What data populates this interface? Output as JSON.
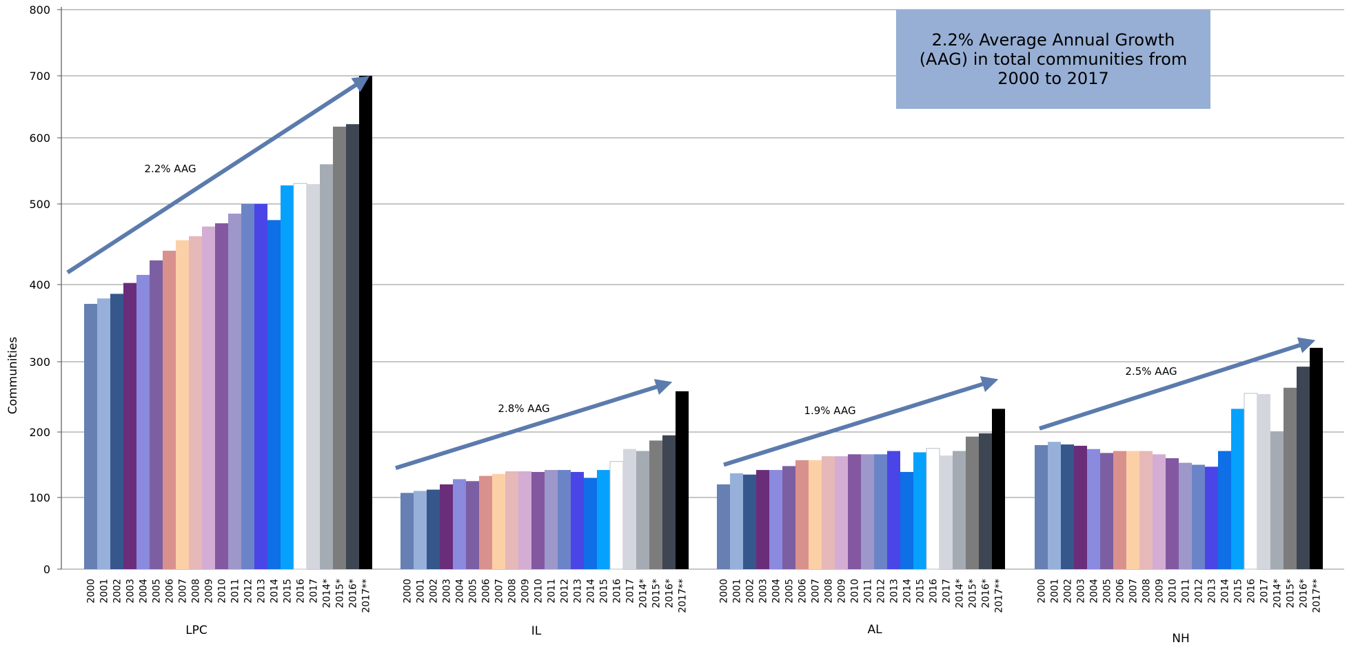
{
  "chart_data": {
    "type": "bar",
    "title": "",
    "ylabel": "Communities",
    "xlabel": "",
    "ylim": [
      0,
      800
    ],
    "yticks": [
      0,
      100,
      200,
      300,
      400,
      500,
      600,
      700,
      800
    ],
    "grid": true,
    "categories": [
      "2000",
      "2001",
      "2002",
      "2003",
      "2004",
      "2005",
      "2006",
      "2007",
      "2008",
      "2009",
      "2010",
      "2011",
      "2012",
      "2013",
      "2014",
      "2015",
      "2016",
      "2017",
      "2014*",
      "2015*",
      "2016*",
      "2017**"
    ],
    "bar_colors": [
      "#6680b3",
      "#96b0d9",
      "#35578c",
      "#6a2d7a",
      "#8a8ade",
      "#7c5fa3",
      "#d9918e",
      "#fcd0a7",
      "#e6b8b8",
      "#d4add4",
      "#8358a1",
      "#9e97c9",
      "#6b84c7",
      "#4a45e6",
      "#0e6fe6",
      "#05a1fd",
      "#ffffff",
      "#d3d6dc",
      "#a5abb2",
      "#7c7c7c",
      "#3e4653",
      "#000000"
    ],
    "groups": [
      {
        "name": "LPC",
        "values": [
          375,
          382,
          388,
          402,
          412,
          430,
          442,
          455,
          460,
          472,
          476,
          488,
          500,
          500,
          480,
          528,
          531,
          530,
          560,
          618,
          622,
          700
        ]
      },
      {
        "name": "IL",
        "values": [
          107,
          110,
          112,
          120,
          128,
          125,
          133,
          136,
          140,
          140,
          139,
          142,
          142,
          139,
          130,
          142,
          155,
          174,
          171,
          187,
          195,
          258
        ]
      },
      {
        "name": "AL",
        "values": [
          120,
          137,
          135,
          142,
          142,
          148,
          157,
          157,
          163,
          163,
          166,
          166,
          166,
          171,
          139,
          169,
          175,
          164,
          171,
          193,
          198,
          233
        ]
      },
      {
        "name": "NH",
        "values": [
          180,
          185,
          181,
          179,
          174,
          168,
          171,
          171,
          171,
          166,
          160,
          153,
          150,
          147,
          171,
          233,
          255,
          254,
          201,
          263,
          293,
          318
        ]
      }
    ],
    "annotations": [
      {
        "group": "LPC",
        "text": "2.2% AAG",
        "from_value": 415,
        "to_value": 693
      },
      {
        "group": "IL",
        "text": "2.8% AAG",
        "from_value": 145,
        "to_value": 268
      },
      {
        "group": "AL",
        "text": "1.9% AAG",
        "from_value": 150,
        "to_value": 272
      },
      {
        "group": "NH",
        "text": "2.5% AAG",
        "from_value": 205,
        "to_value": 325
      }
    ],
    "callout": "2.2% Average Annual Growth (AAG) in total communities from 2000 to 2017",
    "arrow_color": "#5b7bad"
  }
}
